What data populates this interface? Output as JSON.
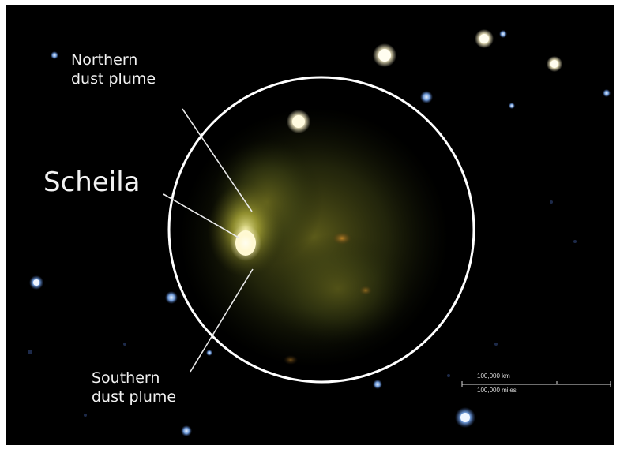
{
  "labels": {
    "northern_line1": "Northern",
    "northern_line2": "dust plume",
    "scheila": "Scheila",
    "southern_line1": "Southern",
    "southern_line2": "dust plume"
  },
  "scale_bar": {
    "km_label": "100,000 km",
    "miles_label": "100,000 miles"
  },
  "colors": {
    "background": "#000000",
    "circle": "#ffffff",
    "plume": "#9a9a2a",
    "nucleus": "#fffbd0",
    "label_text": "#f2f2f2"
  }
}
